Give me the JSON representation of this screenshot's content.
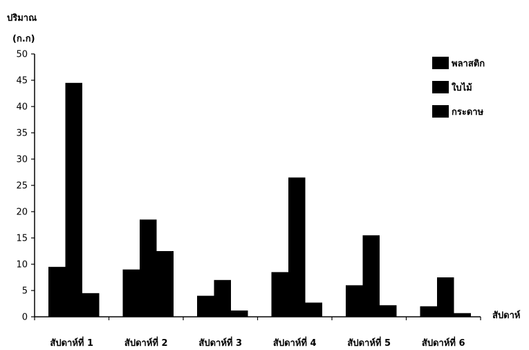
{
  "chart_data": {
    "type": "bar",
    "title": "",
    "ylabel": "ปริมาณ",
    "yunit": "(ก.ก)",
    "xlabel": "สัปดาห์",
    "ylim": [
      0,
      50
    ],
    "yticks": [
      0,
      5,
      10,
      15,
      20,
      25,
      30,
      35,
      40,
      45,
      50
    ],
    "categories": [
      "สัปดาห์ที่ 1",
      "สัปดาห์ที่ 2",
      "สัปดาห์ที่ 3",
      "สัปดาห์ที่ 4",
      "สัปดาห์ที่ 5",
      "สัปดาห์ที่ 6"
    ],
    "series": [
      {
        "name": "พลาสติก",
        "values": [
          9.5,
          9,
          4,
          8.5,
          6,
          2
        ]
      },
      {
        "name": "ใบไม้",
        "values": [
          44.5,
          18.5,
          7,
          26.5,
          15.5,
          7.5
        ]
      },
      {
        "name": "กระดาษ",
        "values": [
          4.5,
          12.5,
          1.2,
          2.7,
          2.2,
          0.7
        ]
      }
    ],
    "legend_position": "top-right",
    "colors": [
      "#000000",
      "#000000",
      "#000000"
    ],
    "grid": false
  }
}
